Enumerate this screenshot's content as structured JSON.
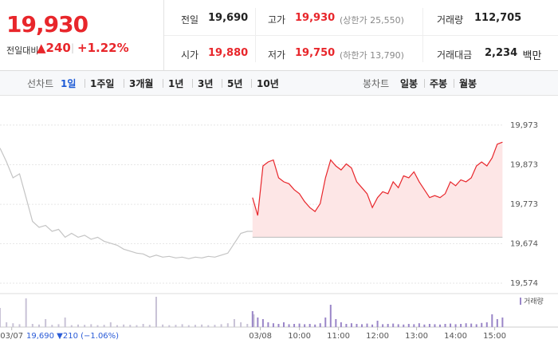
{
  "header": {
    "price": "19,930",
    "change_label": "전일대비",
    "change": "▲240",
    "separator": "|",
    "change_pct": "+1.22%",
    "stats": [
      {
        "label": "전일",
        "value": "19,690",
        "color": "#222222"
      },
      {
        "label": "고가",
        "value": "19,930",
        "note": "(상한가 25,550)",
        "color": "#e8262b"
      },
      {
        "label": "거래량",
        "value": "112,705",
        "color": "#222222"
      },
      {
        "label": "시가",
        "value": "19,880",
        "color": "#e8262b"
      },
      {
        "label": "저가",
        "value": "19,750",
        "note": "(하한가 13,790)",
        "color": "#e8262b"
      },
      {
        "label": "거래대금",
        "value": "2,234",
        "unit": "백만",
        "color": "#222222"
      }
    ]
  },
  "tabs": {
    "line_label": "선차트",
    "periods": [
      "1일",
      "1주일",
      "3개월",
      "1년",
      "3년",
      "5년",
      "10년"
    ],
    "selected": 0,
    "candle_label": "봉차트",
    "candles": [
      "일봉",
      "주봉",
      "월봉"
    ]
  },
  "chart_data": [
    {
      "type": "line",
      "series": [
        {
          "color": "#c4c4c4",
          "x": [
            -400,
            -390,
            -380,
            -370,
            -360,
            -350,
            -340,
            -330,
            -320,
            -310,
            -300,
            -290,
            -280,
            -270,
            -260,
            -250,
            -240,
            -230,
            -220,
            -210,
            -200,
            -190,
            -180,
            -170,
            -160,
            -150,
            -140,
            -130,
            -120,
            -110,
            -100,
            -90,
            -80,
            -70,
            -60,
            -50,
            -40,
            -30,
            -20,
            -10
          ],
          "values": [
            19915,
            19880,
            19840,
            19850,
            19790,
            19730,
            19715,
            19720,
            19705,
            19710,
            19690,
            19700,
            19690,
            19695,
            19685,
            19690,
            19680,
            19675,
            19670,
            19660,
            19655,
            19650,
            19648,
            19640,
            19645,
            19640,
            19642,
            19638,
            19640,
            19636,
            19640,
            19638,
            19642,
            19640,
            19645,
            19650,
            19675,
            19700,
            19705,
            19705
          ]
        },
        {
          "color": "#e8262b",
          "fill": "#fde6e6",
          "x": [
            -12,
            -4,
            4,
            12,
            20,
            28,
            36,
            44,
            52,
            60,
            68,
            76,
            84,
            92,
            100,
            108,
            116,
            124,
            132,
            140,
            148,
            156,
            164,
            172,
            180,
            188,
            196,
            204,
            212,
            220,
            228,
            236,
            244,
            252,
            260,
            268,
            276,
            284,
            292,
            300,
            308,
            316,
            324,
            332,
            340,
            348,
            356,
            364,
            372
          ],
          "values": [
            19790,
            19745,
            19870,
            19880,
            19885,
            19840,
            19830,
            19825,
            19810,
            19800,
            19780,
            19765,
            19755,
            19775,
            19840,
            19885,
            19870,
            19860,
            19875,
            19865,
            19830,
            19815,
            19800,
            19765,
            19790,
            19805,
            19800,
            19830,
            19815,
            19845,
            19840,
            19855,
            19830,
            19810,
            19790,
            19795,
            19790,
            19800,
            19830,
            19820,
            19835,
            19830,
            19840,
            19870,
            19880,
            19870,
            19890,
            19925,
            19930
          ]
        }
      ],
      "baseline": 19690,
      "baseline_color": "#bbbbbb",
      "xlim": [
        -400,
        374
      ],
      "xticks": [
        {
          "value": -382,
          "label": "03/07"
        },
        {
          "value": 0,
          "label": "03/08"
        },
        {
          "value": 60,
          "label": "10:00"
        },
        {
          "value": 120,
          "label": "11:00"
        },
        {
          "value": 180,
          "label": "12:00"
        },
        {
          "value": 240,
          "label": "13:00"
        },
        {
          "value": 300,
          "label": "14:00"
        },
        {
          "value": 360,
          "label": "15:00"
        }
      ],
      "ylim": [
        19554,
        20037
      ],
      "yticks": [
        {
          "value": 19574,
          "label": "19,574"
        },
        {
          "value": 19674,
          "label": "19,674"
        },
        {
          "value": 19773,
          "label": "19,773"
        },
        {
          "value": 19873,
          "label": "19,873"
        },
        {
          "value": 19973,
          "label": "19,973"
        }
      ],
      "grid": true,
      "prev_close_label": "19,690 ▼210 (−1.06%)"
    },
    {
      "type": "bar",
      "legend": "거래량",
      "legend_color": "#9a86c8",
      "series": [
        {
          "color": "#c8c2d6",
          "x": [
            -400,
            -390,
            -380,
            -370,
            -360,
            -350,
            -340,
            -330,
            -320,
            -310,
            -300,
            -290,
            -280,
            -270,
            -260,
            -250,
            -240,
            -230,
            -220,
            -210,
            -200,
            -190,
            -180,
            -170,
            -160,
            -150,
            -140,
            -130,
            -120,
            -110,
            -100,
            -90,
            -80,
            -70,
            -60,
            -50,
            -40,
            -30,
            -20,
            -10
          ],
          "values": [
            6000,
            1500,
            1200,
            900,
            9000,
            1000,
            800,
            2500,
            700,
            900,
            3000,
            600,
            800,
            700,
            900,
            600,
            700,
            1500,
            600,
            800,
            700,
            600,
            1000,
            700,
            9500,
            800,
            600,
            700,
            900,
            600,
            700,
            800,
            600,
            700,
            900,
            1200,
            2500,
            1500,
            1000,
            4000
          ]
        },
        {
          "color": "#9a86c8",
          "x": [
            -12,
            -4,
            4,
            12,
            20,
            28,
            36,
            44,
            52,
            60,
            68,
            76,
            84,
            92,
            100,
            108,
            116,
            124,
            132,
            140,
            148,
            156,
            164,
            172,
            180,
            188,
            196,
            204,
            212,
            220,
            228,
            236,
            244,
            252,
            260,
            268,
            276,
            284,
            292,
            300,
            308,
            316,
            324,
            332,
            340,
            348,
            356,
            364,
            372
          ],
          "values": [
            5000,
            3000,
            2500,
            1500,
            1200,
            1000,
            1500,
            900,
            1000,
            1100,
            900,
            1000,
            800,
            1200,
            3000,
            7000,
            2500,
            1500,
            1000,
            1200,
            1000,
            900,
            1100,
            800,
            2000,
            900,
            1000,
            1100,
            900,
            800,
            1000,
            900,
            1200,
            800,
            1000,
            900,
            800,
            1000,
            1100,
            900,
            1000,
            1200,
            1100,
            900,
            1300,
            1500,
            4000,
            2500,
            3000
          ]
        }
      ],
      "ylim": [
        0,
        10000
      ]
    }
  ]
}
